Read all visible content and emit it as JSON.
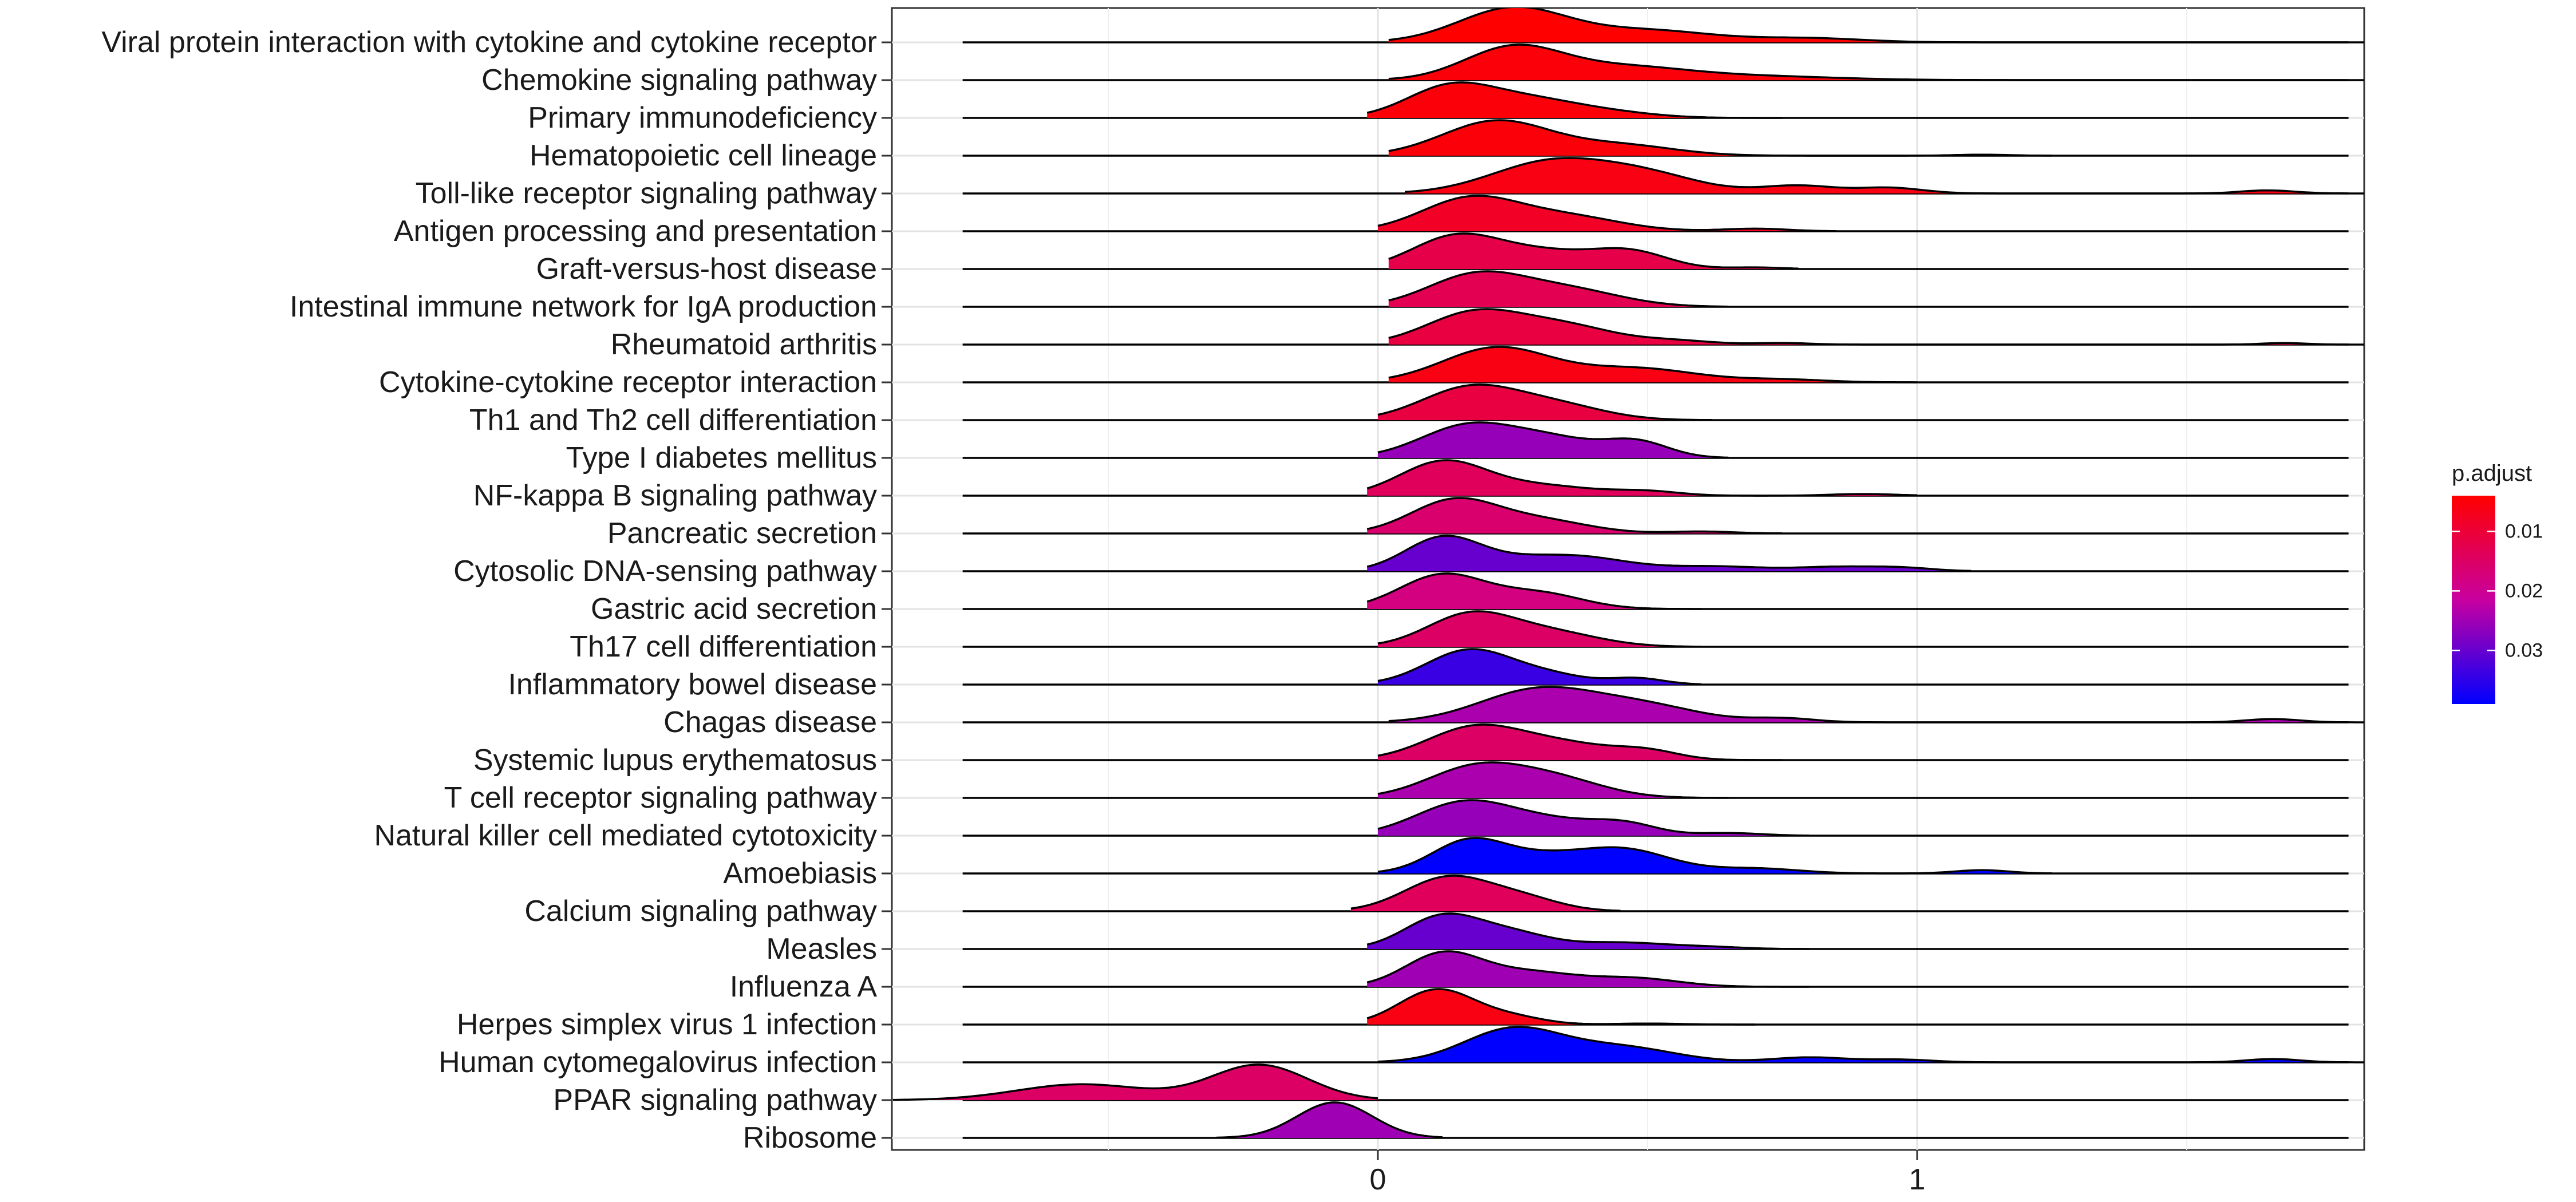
{
  "chart_data": {
    "type": "ridgeline",
    "title": "",
    "xlabel": "",
    "ylabel": "",
    "xlim": [
      -0.9,
      1.85
    ],
    "x_ticks": [
      0,
      1
    ],
    "x_tick_labels": [
      "0",
      "1"
    ],
    "grid": true,
    "legend": {
      "title": "p.adjust",
      "position": "right",
      "range": [
        0.004,
        0.039
      ],
      "ticks": [
        0.01,
        0.02,
        0.03
      ],
      "tick_labels": [
        "0.01",
        "0.02",
        "0.03"
      ],
      "color_low_p": "#ff0000",
      "color_high_p": "#0000ff"
    },
    "series": [
      {
        "name": "Viral protein interaction with cytokine and cytokine receptor",
        "p_adjust": 0.004,
        "range": [
          0.02,
          1.85
        ],
        "bumps": [
          [
            0.25,
            0.1,
            1.0
          ],
          [
            0.5,
            0.12,
            0.35
          ],
          [
            0.8,
            0.1,
            0.12
          ]
        ]
      },
      {
        "name": "Chemokine signaling pathway",
        "p_adjust": 0.005,
        "range": [
          0.02,
          1.85
        ],
        "bumps": [
          [
            0.25,
            0.09,
            1.0
          ],
          [
            0.45,
            0.12,
            0.4
          ],
          [
            0.7,
            0.15,
            0.12
          ]
        ]
      },
      {
        "name": "Primary immunodeficiency",
        "p_adjust": 0.005,
        "range": [
          -0.02,
          0.75
        ],
        "bumps": [
          [
            0.13,
            0.08,
            1.0
          ],
          [
            0.28,
            0.1,
            0.65
          ],
          [
            0.45,
            0.08,
            0.12
          ]
        ]
      },
      {
        "name": "Hematopoietic cell lineage",
        "p_adjust": 0.005,
        "range": [
          0.02,
          1.25
        ],
        "bumps": [
          [
            0.22,
            0.1,
            1.0
          ],
          [
            0.45,
            0.1,
            0.3
          ],
          [
            1.12,
            0.05,
            0.03
          ]
        ]
      },
      {
        "name": "Toll-like receptor signaling pathway",
        "p_adjust": 0.006,
        "range": [
          0.05,
          1.85
        ],
        "bumps": [
          [
            0.32,
            0.11,
            1.0
          ],
          [
            0.5,
            0.1,
            0.55
          ],
          [
            0.78,
            0.07,
            0.25
          ],
          [
            0.95,
            0.06,
            0.18
          ],
          [
            1.65,
            0.05,
            0.1
          ]
        ]
      },
      {
        "name": "Antigen processing and presentation",
        "p_adjust": 0.008,
        "range": [
          0.0,
          0.85
        ],
        "bumps": [
          [
            0.17,
            0.09,
            1.0
          ],
          [
            0.35,
            0.1,
            0.45
          ],
          [
            0.7,
            0.06,
            0.08
          ]
        ]
      },
      {
        "name": "Graft-versus-host disease",
        "p_adjust": 0.012,
        "range": [
          0.02,
          0.78
        ],
        "bumps": [
          [
            0.14,
            0.08,
            0.95
          ],
          [
            0.3,
            0.1,
            0.55
          ],
          [
            0.47,
            0.07,
            0.5
          ],
          [
            0.7,
            0.05,
            0.05
          ]
        ]
      },
      {
        "name": "Intestinal immune network for IgA production",
        "p_adjust": 0.013,
        "range": [
          0.02,
          0.65
        ],
        "bumps": [
          [
            0.18,
            0.09,
            1.0
          ],
          [
            0.35,
            0.1,
            0.55
          ]
        ]
      },
      {
        "name": "Rheumatoid arthritis",
        "p_adjust": 0.011,
        "range": [
          0.02,
          1.85
        ],
        "bumps": [
          [
            0.18,
            0.09,
            1.0
          ],
          [
            0.35,
            0.09,
            0.55
          ],
          [
            0.55,
            0.07,
            0.12
          ],
          [
            0.75,
            0.05,
            0.05
          ],
          [
            1.68,
            0.04,
            0.05
          ]
        ]
      },
      {
        "name": "Cytokine-cytokine receptor interaction",
        "p_adjust": 0.006,
        "range": [
          0.02,
          1.0
        ],
        "bumps": [
          [
            0.22,
            0.1,
            1.0
          ],
          [
            0.48,
            0.11,
            0.4
          ],
          [
            0.75,
            0.08,
            0.08
          ]
        ]
      },
      {
        "name": "Th1 and Th2 cell differentiation",
        "p_adjust": 0.011,
        "range": [
          0.0,
          0.62
        ],
        "bumps": [
          [
            0.17,
            0.09,
            1.0
          ],
          [
            0.33,
            0.09,
            0.45
          ]
        ]
      },
      {
        "name": "Type I diabetes mellitus",
        "p_adjust": 0.026,
        "range": [
          0.0,
          0.65
        ],
        "bumps": [
          [
            0.17,
            0.09,
            1.0
          ],
          [
            0.33,
            0.08,
            0.5
          ],
          [
            0.48,
            0.06,
            0.48
          ]
        ]
      },
      {
        "name": "NF-kappa B signaling pathway",
        "p_adjust": 0.014,
        "range": [
          -0.02,
          1.0
        ],
        "bumps": [
          [
            0.12,
            0.08,
            1.0
          ],
          [
            0.3,
            0.1,
            0.3
          ],
          [
            0.5,
            0.06,
            0.12
          ],
          [
            0.9,
            0.06,
            0.05
          ]
        ]
      },
      {
        "name": "Pancreatic secretion",
        "p_adjust": 0.016,
        "range": [
          -0.02,
          0.75
        ],
        "bumps": [
          [
            0.14,
            0.08,
            1.0
          ],
          [
            0.3,
            0.09,
            0.4
          ],
          [
            0.6,
            0.06,
            0.06
          ]
        ]
      },
      {
        "name": "Cytosolic DNA-sensing pathway",
        "p_adjust": 0.03,
        "range": [
          -0.02,
          1.1
        ],
        "bumps": [
          [
            0.12,
            0.07,
            1.0
          ],
          [
            0.28,
            0.09,
            0.35
          ],
          [
            0.4,
            0.08,
            0.28
          ],
          [
            0.62,
            0.1,
            0.15
          ],
          [
            0.85,
            0.07,
            0.12
          ],
          [
            0.97,
            0.06,
            0.1
          ]
        ]
      },
      {
        "name": "Gastric acid secretion",
        "p_adjust": 0.018,
        "range": [
          -0.02,
          0.6
        ],
        "bumps": [
          [
            0.12,
            0.08,
            1.0
          ],
          [
            0.3,
            0.08,
            0.45
          ]
        ]
      },
      {
        "name": "Th17 cell differentiation",
        "p_adjust": 0.015,
        "range": [
          0.0,
          0.6
        ],
        "bumps": [
          [
            0.17,
            0.08,
            1.0
          ],
          [
            0.32,
            0.09,
            0.45
          ]
        ]
      },
      {
        "name": "Inflammatory bowel disease",
        "p_adjust": 0.034,
        "range": [
          0.0,
          0.6
        ],
        "bumps": [
          [
            0.17,
            0.08,
            1.0
          ],
          [
            0.32,
            0.07,
            0.25
          ],
          [
            0.48,
            0.05,
            0.18
          ]
        ]
      },
      {
        "name": "Chagas disease",
        "p_adjust": 0.024,
        "range": [
          0.02,
          1.85
        ],
        "bumps": [
          [
            0.3,
            0.11,
            1.0
          ],
          [
            0.5,
            0.1,
            0.45
          ],
          [
            0.75,
            0.06,
            0.12
          ],
          [
            1.66,
            0.05,
            0.1
          ]
        ]
      },
      {
        "name": "Systemic lupus erythematosus",
        "p_adjust": 0.015,
        "range": [
          0.0,
          0.75
        ],
        "bumps": [
          [
            0.18,
            0.09,
            1.0
          ],
          [
            0.35,
            0.09,
            0.45
          ],
          [
            0.5,
            0.06,
            0.25
          ]
        ]
      },
      {
        "name": "T cell receptor signaling pathway",
        "p_adjust": 0.024,
        "range": [
          0.0,
          0.65
        ],
        "bumps": [
          [
            0.18,
            0.09,
            1.0
          ],
          [
            0.33,
            0.09,
            0.6
          ]
        ]
      },
      {
        "name": "Natural killer cell mediated cytotoxicity",
        "p_adjust": 0.026,
        "range": [
          0.0,
          0.8
        ],
        "bumps": [
          [
            0.16,
            0.09,
            1.0
          ],
          [
            0.33,
            0.09,
            0.4
          ],
          [
            0.46,
            0.06,
            0.3
          ],
          [
            0.65,
            0.06,
            0.08
          ]
        ]
      },
      {
        "name": "Amoebiasis",
        "p_adjust": 0.039,
        "range": [
          0.0,
          1.25
        ],
        "bumps": [
          [
            0.17,
            0.07,
            1.0
          ],
          [
            0.3,
            0.07,
            0.35
          ],
          [
            0.45,
            0.09,
            0.75
          ],
          [
            0.7,
            0.08,
            0.15
          ],
          [
            1.12,
            0.05,
            0.1
          ]
        ]
      },
      {
        "name": "Calcium signaling pathway",
        "p_adjust": 0.014,
        "range": [
          -0.05,
          0.45
        ],
        "bumps": [
          [
            0.13,
            0.08,
            1.0
          ],
          [
            0.27,
            0.07,
            0.35
          ]
        ]
      },
      {
        "name": "Measles",
        "p_adjust": 0.03,
        "range": [
          -0.02,
          0.8
        ],
        "bumps": [
          [
            0.12,
            0.07,
            1.0
          ],
          [
            0.25,
            0.07,
            0.45
          ],
          [
            0.45,
            0.09,
            0.2
          ],
          [
            0.62,
            0.06,
            0.05
          ]
        ]
      },
      {
        "name": "Influenza A",
        "p_adjust": 0.025,
        "range": [
          -0.02,
          0.8
        ],
        "bumps": [
          [
            0.12,
            0.07,
            1.0
          ],
          [
            0.28,
            0.09,
            0.45
          ],
          [
            0.48,
            0.08,
            0.25
          ]
        ]
      },
      {
        "name": "Herpes simplex virus 1 infection",
        "p_adjust": 0.006,
        "range": [
          -0.02,
          0.7
        ],
        "bumps": [
          [
            0.11,
            0.07,
            1.0
          ],
          [
            0.25,
            0.06,
            0.2
          ],
          [
            0.5,
            0.06,
            0.03
          ]
        ]
      },
      {
        "name": "Human cytomegalovirus infection",
        "p_adjust": 0.039,
        "range": [
          0.0,
          1.85
        ],
        "bumps": [
          [
            0.25,
            0.09,
            1.0
          ],
          [
            0.45,
            0.1,
            0.45
          ],
          [
            0.8,
            0.07,
            0.15
          ],
          [
            0.97,
            0.06,
            0.08
          ],
          [
            1.66,
            0.05,
            0.1
          ]
        ]
      },
      {
        "name": "PPAR signaling pathway",
        "p_adjust": 0.015,
        "range": [
          -0.9,
          0.0
        ],
        "bumps": [
          [
            -0.55,
            0.12,
            0.45
          ],
          [
            -0.22,
            0.09,
            1.0
          ]
        ]
      },
      {
        "name": "Ribosome",
        "p_adjust": 0.025,
        "range": [
          -0.3,
          0.12
        ],
        "bumps": [
          [
            -0.08,
            0.07,
            1.0
          ]
        ]
      }
    ]
  }
}
